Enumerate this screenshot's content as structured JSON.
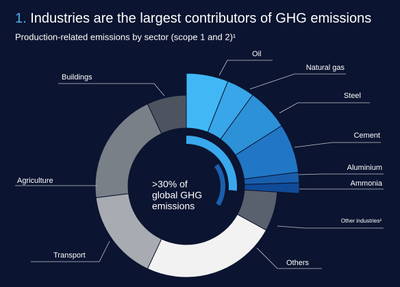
{
  "chart_data": {
    "type": "donut",
    "title_number": "1.",
    "title": "Industries are the largest contributors of GHG emissions",
    "subtitle": "Production-related emissions by sector (scope 1 and 2)¹",
    "center_text": [
      ">30% of",
      "global GHG",
      "emissions"
    ],
    "categories": [
      "Oil",
      "Natural gas",
      "Steel",
      "Cement",
      "Aluminium",
      "Ammonia",
      "Other industries²",
      "Others",
      "Transport",
      "Agriculture",
      "Buildings"
    ],
    "values": [
      6,
      4,
      6,
      7,
      1.5,
      1.5,
      7,
      24,
      16,
      20,
      7
    ],
    "colors": [
      "#41b8f5",
      "#38a6e8",
      "#2d91d8",
      "#2177c6",
      "#185eac",
      "#104b98",
      "#58616d",
      "#f2f2f2",
      "#a8acb2",
      "#7a8088",
      "#4d5460"
    ],
    "highlighted": [
      true,
      true,
      true,
      true,
      true,
      true,
      false,
      false,
      false,
      false,
      false
    ]
  }
}
